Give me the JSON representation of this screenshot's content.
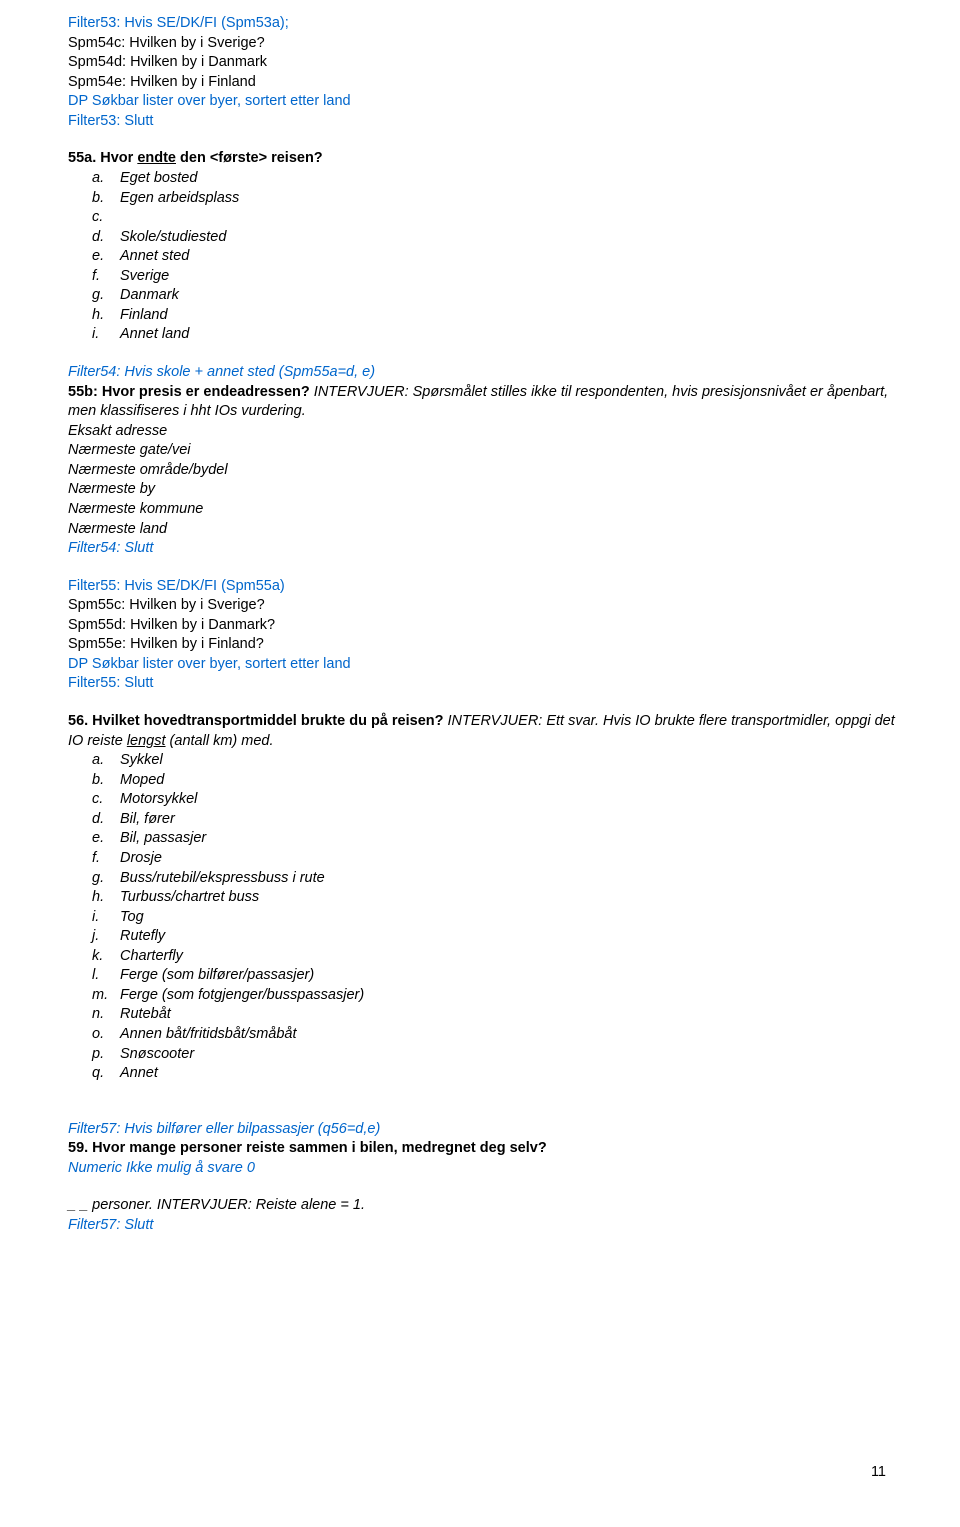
{
  "intro": {
    "line1": "Filter53: Hvis SE/DK/FI (Spm53a);",
    "line2": "Spm54c: Hvilken by i Sverige?",
    "line3": "Spm54d: Hvilken by i Danmark",
    "line4": "Spm54e: Hvilken by i Finland",
    "line5": "DP Søkbar lister over byer, sortert etter land",
    "line6": "Filter53: Slutt"
  },
  "q55a": {
    "num": "55a. Hvor ",
    "underlined": "endte",
    "rest": " den <første> reisen?",
    "options": [
      {
        "l": "a.",
        "t": "Eget bosted"
      },
      {
        "l": "b.",
        "t": "Egen arbeidsplass"
      },
      {
        "l": "c.",
        "t": ""
      },
      {
        "l": "d.",
        "t": "Skole/studiested"
      },
      {
        "l": "e.",
        "t": "Annet sted"
      },
      {
        "l": "f.",
        "t": "Sverige"
      },
      {
        "l": "g.",
        "t": "Danmark"
      },
      {
        "l": "h.",
        "t": "Finland"
      },
      {
        "l": "i.",
        "t": "Annet land"
      }
    ]
  },
  "filter54": {
    "head": "Filter54: Hvis skole + annet sted (Spm55a=d, e)",
    "q55b_bold": "55b: Hvor presis er endeadressen?",
    "q55b_italic": " INTERVJUER: Spørsmålet stilles ikke til respondenten, hvis presisjonsnivået er åpenbart, men klassifiseres i hht IOs vurdering.",
    "items": [
      "Eksakt adresse",
      "Nærmeste gate/vei",
      "Nærmeste område/bydel",
      "Nærmeste by",
      "Nærmeste kommune",
      "Nærmeste land"
    ],
    "end": "Filter54: Slutt"
  },
  "filter55": {
    "head": "Filter55: Hvis SE/DK/FI (Spm55a)",
    "l1": "Spm55c: Hvilken by i Sverige?",
    "l2": "Spm55d: Hvilken by i Danmark?",
    "l3": "Spm55e: Hvilken by i Finland?",
    "dp": "DP Søkbar lister over byer, sortert etter land",
    "end": "Filter55: Slutt"
  },
  "q56": {
    "bold": "56. Hvilket hovedtransportmiddel brukte du på reisen?",
    "it1": " INTERVJUER: Ett svar. Hvis IO brukte flere transportmidler, oppgi det IO reiste ",
    "und": "lengst",
    "it2": " (antall km) med.",
    "options": [
      {
        "l": "a.",
        "t": "Sykkel"
      },
      {
        "l": "b.",
        "t": "Moped"
      },
      {
        "l": "c.",
        "t": "Motorsykkel"
      },
      {
        "l": "d.",
        "t": "Bil, fører"
      },
      {
        "l": "e.",
        "t": "Bil, passasjer"
      },
      {
        "l": "f.",
        "t": "Drosje"
      },
      {
        "l": "g.",
        "t": "Buss/rutebil/ekspressbuss i rute"
      },
      {
        "l": "h.",
        "t": "Turbuss/chartret buss"
      },
      {
        "l": "i.",
        "t": "Tog"
      },
      {
        "l": "j.",
        "t": "Rutefly"
      },
      {
        "l": "k.",
        "t": "Charterfly"
      },
      {
        "l": "l.",
        "t": "Ferge (som bilfører/passasjer)"
      },
      {
        "l": "m.",
        "t": "Ferge (som fotgjenger/busspassasjer)"
      },
      {
        "l": "n.",
        "t": "Rutebåt"
      },
      {
        "l": "o.",
        "t": "Annen båt/fritidsbåt/småbåt"
      },
      {
        "l": "p.",
        "t": "Snøscooter"
      },
      {
        "l": "q.",
        "t": "Annet"
      }
    ]
  },
  "filter57": {
    "head": "Filter57: Hvis bilfører eller bilpassasjer (q56=d,e)",
    "q59": "59. Hvor mange personer reiste sammen i bilen, medregnet deg selv?",
    "numeric": "Numeric  Ikke mulig å svare 0",
    "ans_plain": "_ _ personer.",
    "ans_it": " INTERVJUER: Reiste alene = 1.",
    "end": "Filter57: Slutt"
  },
  "pagenum": "11"
}
